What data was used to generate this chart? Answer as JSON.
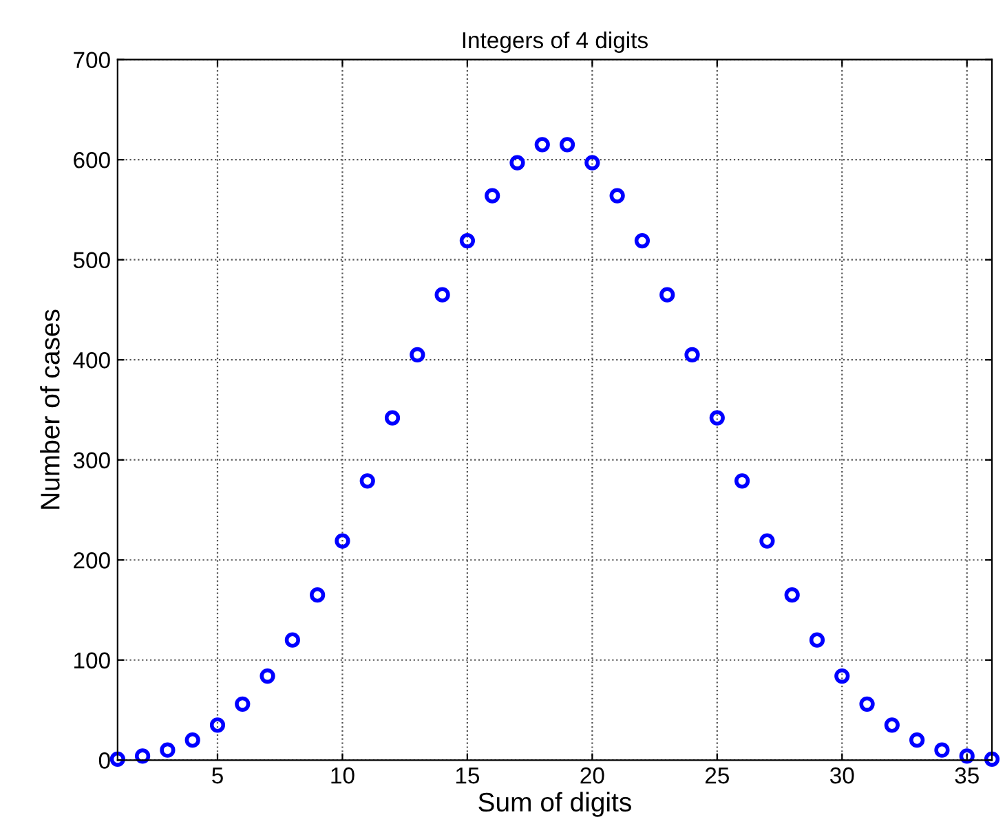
{
  "chart_data": {
    "type": "scatter",
    "title": "Integers of 4 digits",
    "xlabel": "Sum of digits",
    "ylabel": "Number of cases",
    "x": [
      1,
      2,
      3,
      4,
      5,
      6,
      7,
      8,
      9,
      10,
      11,
      12,
      13,
      14,
      15,
      16,
      17,
      18,
      19,
      20,
      21,
      22,
      23,
      24,
      25,
      26,
      27,
      28,
      29,
      30,
      31,
      32,
      33,
      34,
      35,
      36
    ],
    "series": [
      {
        "color": "#0000ff",
        "values": [
          1,
          4,
          10,
          20,
          35,
          56,
          84,
          120,
          165,
          219,
          279,
          342,
          405,
          465,
          519,
          564,
          597,
          615,
          615,
          597,
          564,
          519,
          465,
          405,
          342,
          279,
          219,
          165,
          120,
          84,
          56,
          35,
          20,
          10,
          4,
          1
        ]
      }
    ],
    "xlim": [
      1,
      36
    ],
    "ylim": [
      0,
      700
    ],
    "xticks": [
      5,
      10,
      15,
      20,
      25,
      30,
      35
    ],
    "yticks": [
      0,
      100,
      200,
      300,
      400,
      500,
      600,
      700
    ],
    "grid": true,
    "marker": "circle"
  }
}
